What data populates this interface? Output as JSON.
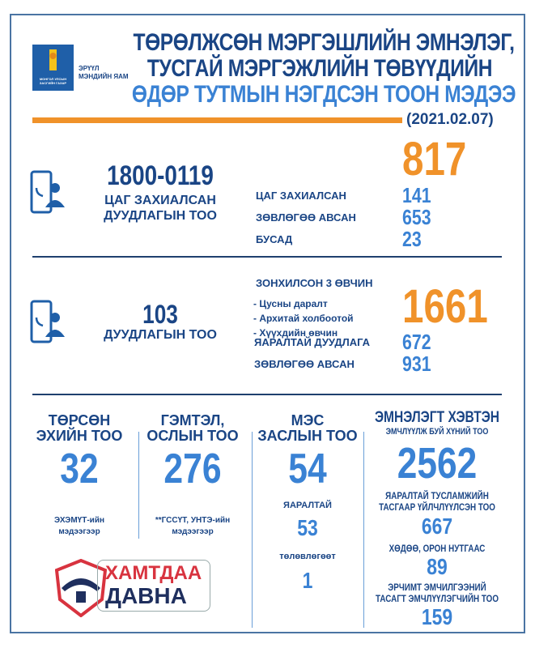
{
  "header": {
    "emblem_text": "МОНГОЛ УЛСЫН ЗАСГИЙН ГАЗАР",
    "ministry_line1": "ЭРҮҮЛ",
    "ministry_line2": "МЭНДИЙН ЯАМ",
    "title_line1": "ТӨРӨЛЖСӨН МЭРГЭШЛИЙН ЭМНЭЛЭГ,",
    "title_line2": "ТУСГАЙ МЭРГЭЖЛИЙН ТӨВҮҮДИЙН",
    "title_line3": "ӨДӨР ТУТМЫН НЭГДСЭН ТООН МЭДЭЭ",
    "date": "(2021.02.07)"
  },
  "hotline": {
    "number": "1800-0119",
    "caption_line1": "ЦАГ ЗАХИАЛСАН",
    "caption_line2": "ДУУДЛАГЫН ТОО",
    "total": "817",
    "rows": [
      {
        "label": "ЦАГ ЗАХИАЛСАН",
        "value": "141"
      },
      {
        "label": "ЗӨВЛӨГӨӨ АВСАН",
        "value": "653"
      },
      {
        "label": "БУСАД",
        "value": "23"
      }
    ]
  },
  "calls103": {
    "number": "103",
    "caption": "ДУУДЛАГЫН ТОО",
    "top3_title": "ЗОНХИЛСОН 3 ӨВЧИН",
    "top3": [
      "- Цусны даралт",
      "- Архитай холбоотой",
      "- Хүүхдийн өвчин"
    ],
    "total": "1661",
    "rows": [
      {
        "label": "ЯАРАЛТАЙ ДУУДЛАГА",
        "value": "672"
      },
      {
        "label": "ЗӨВЛӨГӨӨ АВСАН",
        "value": "931"
      }
    ]
  },
  "births": {
    "title_line1": "ТӨРСӨН",
    "title_line2": "ЭХИЙН ТОО",
    "value": "32",
    "note_line1": "ЭХЭМҮТ-ийн",
    "note_line2": "мэдээгээр"
  },
  "injuries": {
    "title_line1": "ГЭМТЭЛ,",
    "title_line2": "ОСЛЫН ТОО",
    "value": "276",
    "note_line1": "**ГССҮТ, УНТЭ-ийн",
    "note_line2": "мэдээгээр"
  },
  "surgery": {
    "title_line1": "МЭС",
    "title_line2": "ЗАСЛЫН ТОО",
    "value": "54",
    "urgent_label": "ЯАРАЛТАЙ",
    "urgent_value": "53",
    "planned_label": "төлөвлөгөөт",
    "planned_value": "1"
  },
  "inpatients": {
    "title": "ЭМНЭЛЭГТ ХЭВТЭН",
    "subtitle": "ЭМЧЛҮҮЛЖ БУЙ ХҮНИЙ ТОО",
    "value": "2562",
    "emergency_line1": "ЯАРАЛТАЙ ТУСЛАМЖИЙН",
    "emergency_line2": "ТАСГААР ҮЙЛЧЛҮҮЛСЭН ТОО",
    "emergency_value": "667",
    "rural_label": "ХӨДӨӨ, ОРОН НУТГААС",
    "rural_value": "89",
    "icu_line1": "ЭРЧИМТ ЭМЧИЛГЭЭНИЙ",
    "icu_line2": "ТАСАГТ ЭМЧЛҮҮЛЭГЧИЙН ТОО",
    "icu_value": "159"
  },
  "campaign_logo": {
    "line1": "ХАМТДАА",
    "line2": "ДАВНА"
  },
  "colors": {
    "dark_blue": "#1a4585",
    "light_blue": "#3a82d4",
    "orange": "#f0922a",
    "red": "#d8333f"
  }
}
